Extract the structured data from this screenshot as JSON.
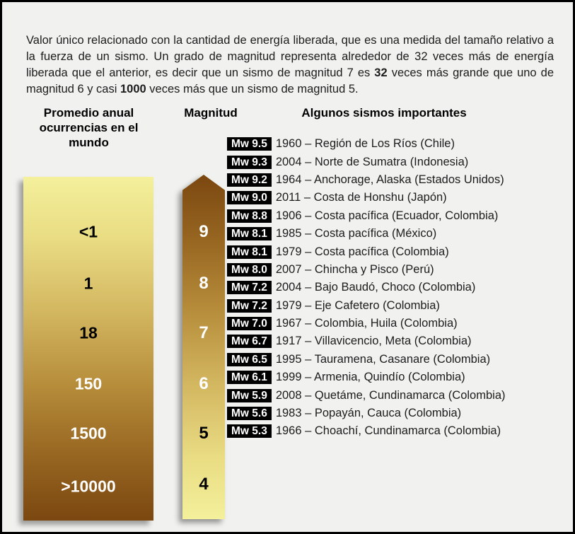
{
  "intro": {
    "segments": [
      {
        "text": "Valor único relacionado con la cantidad de energía liberada, que es una medida del tamaño relativo a la fuerza de un sismo. Un grado de magnitud representa alrededor de 32 veces más de energía liberada que el anterior, es decir que un sismo de magnitud 7 es ",
        "bold": false
      },
      {
        "text": "32",
        "bold": true
      },
      {
        "text": " veces más grande que uno de magnitud 6 y casi ",
        "bold": false
      },
      {
        "text": "1000",
        "bold": true
      },
      {
        "text": " veces más que un sismo de magnitud 5.",
        "bold": false
      }
    ]
  },
  "columns": {
    "frequency_header": "Promedio anual\nocurrencias en el\nmundo",
    "magnitude_header": "Magnitud",
    "earthquakes_header": "Algunos sismos importantes"
  },
  "frequency_bar": {
    "gradient_top_color": "#F4F09B",
    "gradient_bottom_color": "#7B4710",
    "values": [
      {
        "label": "<1",
        "text_color": "#000000"
      },
      {
        "label": "1",
        "text_color": "#000000"
      },
      {
        "label": "18",
        "text_color": "#000000"
      },
      {
        "label": "150",
        "text_color": "#ffffff"
      },
      {
        "label": "1500",
        "text_color": "#ffffff"
      },
      {
        "label": ">10000",
        "text_color": "#ffffff"
      }
    ]
  },
  "magnitude_arrow": {
    "gradient_top_color": "#7B4710",
    "gradient_bottom_color": "#F4F09B",
    "values": [
      {
        "label": "9",
        "text_color": "#ffffff"
      },
      {
        "label": "8",
        "text_color": "#ffffff"
      },
      {
        "label": "7",
        "text_color": "#ffffff"
      },
      {
        "label": "6",
        "text_color": "#ffffff"
      },
      {
        "label": "5",
        "text_color": "#000000"
      },
      {
        "label": "4",
        "text_color": "#000000"
      }
    ]
  },
  "earthquakes": {
    "badge_bg_color": "#000000",
    "badge_text_color": "#ffffff",
    "rows": [
      {
        "badge": "Mw 9.5",
        "description": "1960 – Región de Los Ríos (Chile)"
      },
      {
        "badge": "Mw 9.3",
        "description": "2004 – Norte de Sumatra (Indonesia)"
      },
      {
        "badge": "Mw 9.2",
        "description": "1964 – Anchorage, Alaska (Estados Unidos)"
      },
      {
        "badge": "Mw 9.0",
        "description": "2011 – Costa de Honshu (Japón)"
      },
      {
        "badge": "Mw 8.8",
        "description": "1906 – Costa pacífica (Ecuador, Colombia)"
      },
      {
        "badge": "Mw 8.1",
        "description": "1985 – Costa pacífica (México)"
      },
      {
        "badge": "Mw 8.1",
        "description": "1979 – Costa pacífica (Colombia)"
      },
      {
        "badge": "Mw 8.0",
        "description": "2007 – Chincha y Pisco (Perú)"
      },
      {
        "badge": "Mw 7.2",
        "description": "2004 – Bajo Baudó, Choco (Colombia)"
      },
      {
        "badge": "Mw 7.2",
        "description": "1979 – Eje Cafetero (Colombia)"
      },
      {
        "badge": "Mw 7.0",
        "description": "1967 – Colombia, Huila (Colombia)"
      },
      {
        "badge": "Mw 6.7",
        "description": "1917 – Villavicencio, Meta (Colombia)"
      },
      {
        "badge": "Mw 6.5",
        "description": "1995 – Tauramena, Casanare (Colombia)"
      },
      {
        "badge": "Mw 6.1",
        "description": "1999 – Armenia, Quindío (Colombia)"
      },
      {
        "badge": "Mw 5.9",
        "description": "2008 – Quetáme, Cundinamarca (Colombia)"
      },
      {
        "badge": "Mw 5.6",
        "description": "1983 – Popayán, Cauca (Colombia)"
      },
      {
        "badge": "Mw 5.3",
        "description": "1966 – Choachí, Cundinamarca (Colombia)"
      }
    ]
  }
}
